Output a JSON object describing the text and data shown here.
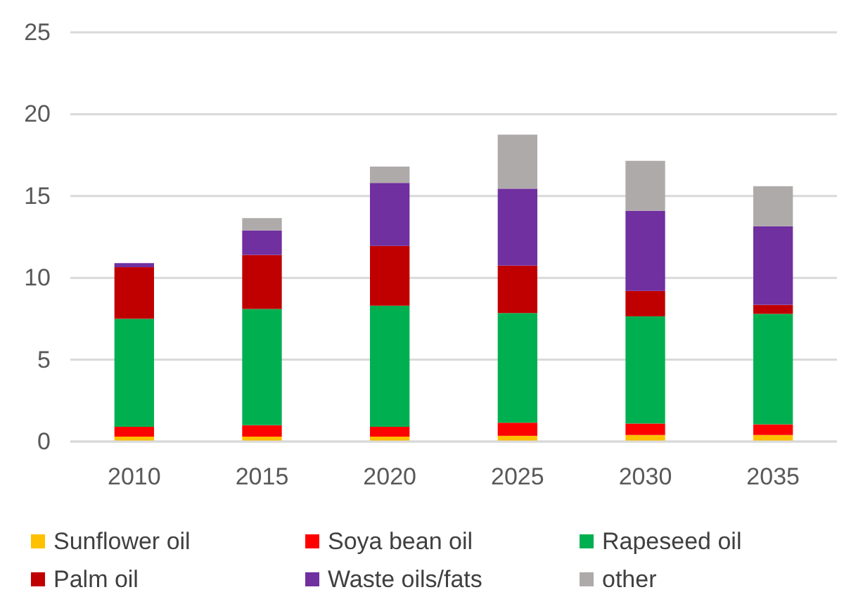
{
  "chart_data": {
    "type": "bar",
    "stacked": true,
    "categories": [
      "2010",
      "2015",
      "2020",
      "2025",
      "2030",
      "2035"
    ],
    "series": [
      {
        "name": "Sunflower oil",
        "color": "#ffc000",
        "values": [
          0.3,
          0.3,
          0.3,
          0.35,
          0.4,
          0.4
        ]
      },
      {
        "name": "Soya bean oil",
        "color": "#ff0000",
        "values": [
          0.6,
          0.7,
          0.6,
          0.8,
          0.7,
          0.65
        ]
      },
      {
        "name": "Rapeseed oil",
        "color": "#00b050",
        "values": [
          6.6,
          7.1,
          7.4,
          6.7,
          6.55,
          6.75
        ]
      },
      {
        "name": "Palm oil",
        "color": "#c00000",
        "values": [
          3.15,
          3.3,
          3.65,
          2.9,
          1.55,
          0.55
        ]
      },
      {
        "name": "Waste oils/fats",
        "color": "#7030a0",
        "values": [
          0.25,
          1.5,
          3.85,
          4.7,
          4.9,
          4.8
        ]
      },
      {
        "name": "other",
        "color": "#aeaaaa",
        "values": [
          0,
          0.75,
          1.0,
          3.3,
          3.05,
          2.45
        ]
      }
    ],
    "ylim": [
      0,
      25
    ],
    "yticks": [
      0,
      5,
      10,
      15,
      20,
      25
    ],
    "grid": "y",
    "legend": "bottom"
  }
}
